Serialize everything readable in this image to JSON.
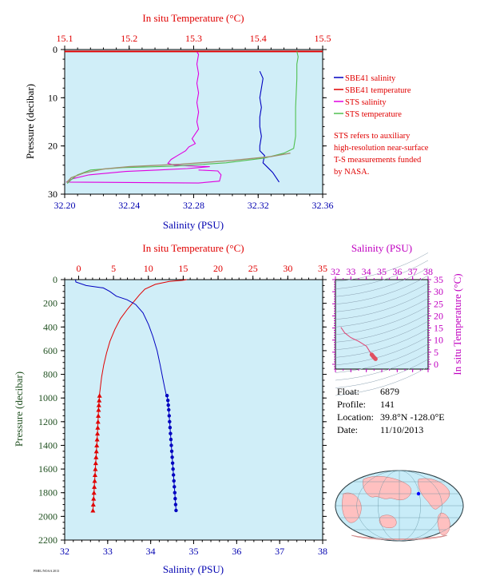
{
  "chart_data": [
    {
      "type": "line",
      "name": "near-surface profile",
      "top_axis": {
        "label": "In situ Temperature (°C)",
        "ticks": [
          "15.1",
          "15.2",
          "15.3",
          "15.4",
          "15.5"
        ],
        "range": [
          15.1,
          15.5
        ],
        "color": "#e00000"
      },
      "bottom_axis": {
        "label": "Salinity (PSU)",
        "ticks": [
          "32.20",
          "32.24",
          "32.28",
          "32.32",
          "32.36"
        ],
        "range": [
          32.2,
          32.36
        ],
        "color": "#0000b0"
      },
      "y_axis": {
        "label": "Pressure (decibar)",
        "ticks": [
          "0",
          "10",
          "20",
          "30"
        ],
        "range": [
          0,
          30
        ],
        "inverted": true
      },
      "legend": {
        "placement": "right",
        "entries": [
          {
            "label": "SBE41 salinity",
            "color": "#0000c0"
          },
          {
            "label": "SBE41 temperature",
            "color": "#e00000"
          },
          {
            "label": "STS salinity",
            "color": "#e000e0"
          },
          {
            "label": "STS temperature",
            "color": "#50c050"
          }
        ]
      },
      "note": [
        "STS refers to auxiliary",
        "high-resolution near-surface",
        "T-S measurements funded",
        "by NASA."
      ],
      "series": [
        {
          "kind": "sbe41_salinity",
          "axis": "salinity",
          "color": "#0000c0",
          "points": [
            [
              32.321,
              4.5
            ],
            [
              32.323,
              6
            ],
            [
              32.322,
              8
            ],
            [
              32.321,
              10
            ],
            [
              32.322,
              12
            ],
            [
              32.321,
              14
            ],
            [
              32.321,
              16
            ],
            [
              32.322,
              18
            ],
            [
              32.321,
              20
            ],
            [
              32.321,
              21
            ],
            [
              32.324,
              22
            ],
            [
              32.323,
              23.5
            ],
            [
              32.326,
              24.5
            ],
            [
              32.329,
              25.5
            ],
            [
              32.331,
              26.5
            ],
            [
              32.333,
              27.5
            ]
          ]
        },
        {
          "kind": "sbe41_temperature",
          "axis": "temperature",
          "color": "#e00000",
          "points": [
            [
              15.1,
              0.4
            ],
            [
              15.5,
              0.4
            ]
          ]
        },
        {
          "kind": "sts_salinity",
          "axis": "salinity",
          "color": "#e000e0",
          "points": [
            [
              32.282,
              0.5
            ],
            [
              32.283,
              1
            ],
            [
              32.282,
              3
            ],
            [
              32.283,
              5
            ],
            [
              32.282,
              7
            ],
            [
              32.283,
              9
            ],
            [
              32.282,
              11
            ],
            [
              32.283,
              13
            ],
            [
              32.282,
              15
            ],
            [
              32.283,
              16.5
            ],
            [
              32.281,
              17.5
            ],
            [
              32.279,
              18.5
            ],
            [
              32.281,
              19.5
            ],
            [
              32.277,
              20.2
            ],
            [
              32.275,
              21
            ],
            [
              32.27,
              22
            ],
            [
              32.266,
              22.8
            ],
            [
              32.264,
              23.6
            ],
            [
              32.268,
              24
            ],
            [
              32.28,
              24.2
            ],
            [
              32.29,
              24.3
            ],
            [
              32.283,
              24.5
            ],
            [
              32.276,
              24.7
            ],
            [
              32.258,
              25
            ],
            [
              32.238,
              25.3
            ],
            [
              32.215,
              26
            ],
            [
              32.205,
              26.8
            ],
            [
              32.201,
              27.5
            ],
            [
              32.283,
              27.7
            ],
            [
              32.296,
              27.3
            ],
            [
              32.297,
              26
            ],
            [
              32.295,
              25.2
            ],
            [
              32.283,
              25
            ]
          ]
        },
        {
          "kind": "sts_temperature",
          "axis": "temperature",
          "color": "#50c050",
          "points": [
            [
              15.46,
              0.4
            ],
            [
              15.462,
              1.5
            ],
            [
              15.46,
              3
            ],
            [
              15.46,
              6
            ],
            [
              15.459,
              9
            ],
            [
              15.458,
              12
            ],
            [
              15.458,
              15
            ],
            [
              15.458,
              18
            ],
            [
              15.455,
              20.5
            ],
            [
              15.44,
              21.5
            ],
            [
              15.41,
              22.5
            ],
            [
              15.35,
              23.5
            ],
            [
              15.27,
              24.2
            ],
            [
              15.19,
              24.5
            ],
            [
              15.14,
              25
            ],
            [
              15.12,
              26
            ],
            [
              15.11,
              27
            ],
            [
              15.104,
              27.8
            ]
          ]
        }
      ]
    },
    {
      "type": "line",
      "name": "full profile",
      "top_axis": {
        "label": "In situ Temperature (°C)",
        "ticks": [
          "0",
          "5",
          "10",
          "15",
          "20",
          "25",
          "30",
          "35"
        ],
        "range": [
          -2,
          35
        ],
        "color": "#e00000"
      },
      "bottom_axis": {
        "label": "Salinity (PSU)",
        "ticks": [
          "32",
          "33",
          "34",
          "35",
          "36",
          "37",
          "38"
        ],
        "range": [
          32,
          38
        ],
        "color": "#0000b0"
      },
      "y_axis": {
        "label": "Pressure (decibar)",
        "ticks": [
          "0",
          "200",
          "400",
          "600",
          "800",
          "1000",
          "1200",
          "1400",
          "1600",
          "1800",
          "2000",
          "2200"
        ],
        "range": [
          0,
          2200
        ],
        "inverted": true,
        "color": "#205020"
      },
      "series": [
        {
          "kind": "temperature_line",
          "axis": "temperature",
          "color": "#e00000",
          "points": [
            [
              15.5,
              0
            ],
            [
              15,
              5
            ],
            [
              13,
              15
            ],
            [
              11,
              40
            ],
            [
              9.5,
              80
            ],
            [
              8.7,
              130
            ],
            [
              8,
              180
            ],
            [
              7,
              250
            ],
            [
              6,
              330
            ],
            [
              5.2,
              420
            ],
            [
              4.5,
              520
            ],
            [
              4,
              620
            ],
            [
              3.6,
              720
            ],
            [
              3.3,
              820
            ],
            [
              3.1,
              920
            ],
            [
              3.0,
              970
            ]
          ]
        },
        {
          "kind": "temperature_markers",
          "axis": "temperature",
          "color": "#e00000",
          "points": [
            [
              3.0,
              980
            ],
            [
              2.95,
              1020
            ],
            [
              2.9,
              1060
            ],
            [
              2.86,
              1100
            ],
            [
              2.82,
              1150
            ],
            [
              2.78,
              1200
            ],
            [
              2.74,
              1250
            ],
            [
              2.7,
              1300
            ],
            [
              2.65,
              1350
            ],
            [
              2.6,
              1400
            ],
            [
              2.55,
              1450
            ],
            [
              2.5,
              1500
            ],
            [
              2.45,
              1550
            ],
            [
              2.4,
              1600
            ],
            [
              2.35,
              1650
            ],
            [
              2.3,
              1700
            ],
            [
              2.25,
              1750
            ],
            [
              2.2,
              1800
            ],
            [
              2.15,
              1850
            ],
            [
              2.1,
              1900
            ],
            [
              2.05,
              1950
            ]
          ]
        },
        {
          "kind": "salinity_line",
          "axis": "salinity",
          "color": "#0000c0",
          "points": [
            [
              32.25,
              0
            ],
            [
              32.26,
              20
            ],
            [
              32.5,
              50
            ],
            [
              32.9,
              70
            ],
            [
              33.05,
              100
            ],
            [
              33.2,
              140
            ],
            [
              33.45,
              170
            ],
            [
              33.65,
              210
            ],
            [
              33.82,
              280
            ],
            [
              33.95,
              380
            ],
            [
              34.05,
              480
            ],
            [
              34.15,
              600
            ],
            [
              34.22,
              720
            ],
            [
              34.28,
              830
            ],
            [
              34.33,
              920
            ],
            [
              34.36,
              970
            ]
          ]
        },
        {
          "kind": "salinity_markers",
          "axis": "salinity",
          "color": "#0000c0",
          "points": [
            [
              34.38,
              980
            ],
            [
              34.4,
              1020
            ],
            [
              34.41,
              1060
            ],
            [
              34.42,
              1100
            ],
            [
              34.43,
              1150
            ],
            [
              34.44,
              1200
            ],
            [
              34.45,
              1250
            ],
            [
              34.46,
              1300
            ],
            [
              34.47,
              1350
            ],
            [
              34.48,
              1400
            ],
            [
              34.49,
              1450
            ],
            [
              34.5,
              1500
            ],
            [
              34.51,
              1550
            ],
            [
              34.52,
              1600
            ],
            [
              34.53,
              1650
            ],
            [
              34.54,
              1700
            ],
            [
              34.55,
              1750
            ],
            [
              34.56,
              1800
            ],
            [
              34.57,
              1850
            ],
            [
              34.58,
              1900
            ],
            [
              34.59,
              1950
            ]
          ]
        }
      ]
    },
    {
      "type": "scatter",
      "name": "T-S diagram",
      "top_axis": {
        "label": "Salinity (PSU)",
        "ticks": [
          "32",
          "33",
          "34",
          "35",
          "36",
          "37",
          "38"
        ],
        "range": [
          32,
          38
        ],
        "color": "#c000c0"
      },
      "right_axis": {
        "label": "In situ Temperature (°C)",
        "ticks": [
          "0",
          "5",
          "10",
          "15",
          "20",
          "25",
          "30",
          "35"
        ],
        "range": [
          -2,
          35
        ],
        "color": "#c000c0"
      },
      "series": [
        {
          "kind": "ts_line",
          "color": "#e04070",
          "points": [
            [
              32.35,
              15.3
            ],
            [
              32.6,
              13
            ],
            [
              33.0,
              11
            ],
            [
              33.5,
              9.5
            ],
            [
              34.0,
              7.5
            ],
            [
              34.2,
              5.5
            ],
            [
              34.3,
              4.5
            ]
          ]
        },
        {
          "kind": "ts_markers",
          "color": "#e05060",
          "points": [
            [
              34.35,
              4.0
            ],
            [
              34.4,
              3.6
            ],
            [
              34.45,
              3.2
            ],
            [
              34.5,
              2.8
            ],
            [
              34.55,
              2.5
            ],
            [
              34.6,
              2.2
            ]
          ]
        }
      ]
    }
  ],
  "info": {
    "float_label": "Float:",
    "float_value": "6879",
    "profile_label": "Profile:",
    "profile_value": "141",
    "location_label": "Location:",
    "location_value": "39.8°N  -128.0°E",
    "date_label": "Date:",
    "date_value": "11/10/2013"
  },
  "footer_text": "PMEL/NOAA 2013",
  "map": {
    "marker_color": "#0000ff",
    "land_color": "#ffc0c0",
    "ocean_color": "#c8ecf8"
  }
}
